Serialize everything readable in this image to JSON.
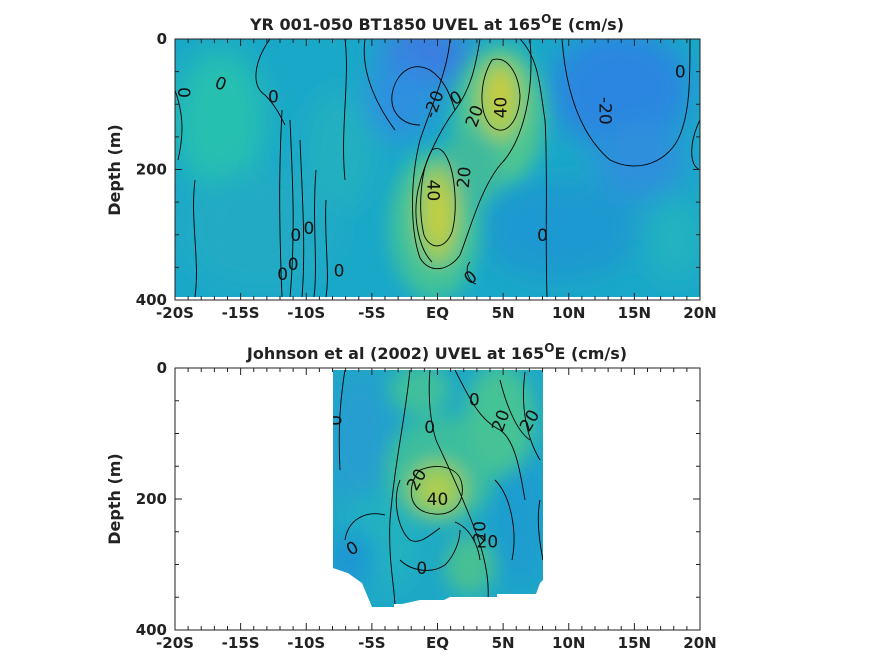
{
  "chart_data": [
    {
      "type": "heatmap",
      "title": "YR 001-050 BT1850 UVEL at 165",
      "title_superscript": "O",
      "title_suffix": "E (cm/s)",
      "ylabel": "Depth (m)",
      "xlim": [
        -20,
        20
      ],
      "ylim": [
        0,
        400
      ],
      "x_ticks": [
        -20,
        -15,
        -10,
        -5,
        0,
        5,
        10,
        15,
        20
      ],
      "x_tick_labels": [
        "-20S",
        "-15S",
        "-10S",
        "-5S",
        "EQ",
        "5N",
        "10N",
        "15N",
        "20N"
      ],
      "y_ticks": [
        0,
        200,
        400
      ],
      "y_tick_labels": [
        "0",
        "200",
        "400"
      ],
      "data_extent": {
        "x": [
          -20,
          20
        ],
        "y": [
          0,
          395
        ]
      },
      "features": [
        {
          "kind": "jet",
          "value": 45,
          "x": 0,
          "y": 220
        },
        {
          "kind": "jet",
          "value": 45,
          "x": 5.5,
          "y": 90
        },
        {
          "kind": "westward",
          "value": -25,
          "x": -1,
          "y": 40
        },
        {
          "kind": "westward",
          "value": -22,
          "x": 12,
          "y": 70
        }
      ],
      "contour_labels": [
        {
          "text": "0",
          "x": -16.5,
          "y": 68,
          "rotate": 20
        },
        {
          "text": "0",
          "x": -19.3,
          "y": 82,
          "rotate": 90
        },
        {
          "text": "0",
          "x": -12.5,
          "y": 88,
          "rotate": 0
        },
        {
          "text": "0",
          "x": 1.4,
          "y": 90,
          "rotate": -30
        },
        {
          "text": "-20",
          "x": -0.3,
          "y": 100,
          "rotate": -70
        },
        {
          "text": "20",
          "x": 2.8,
          "y": 118,
          "rotate": -70
        },
        {
          "text": "40",
          "x": 4.8,
          "y": 105,
          "rotate": -90
        },
        {
          "text": "-20",
          "x": 12.8,
          "y": 110,
          "rotate": 90
        },
        {
          "text": "0",
          "x": 18.5,
          "y": 50,
          "rotate": 0
        },
        {
          "text": "40",
          "x": -0.3,
          "y": 232,
          "rotate": 90
        },
        {
          "text": "20",
          "x": 2.0,
          "y": 212,
          "rotate": -85
        },
        {
          "text": "0",
          "x": 8.0,
          "y": 300,
          "rotate": 0
        },
        {
          "text": "0",
          "x": -9.8,
          "y": 290,
          "rotate": 0
        },
        {
          "text": "0",
          "x": -10.8,
          "y": 300,
          "rotate": 0
        },
        {
          "text": "0",
          "x": -11.0,
          "y": 345,
          "rotate": 0
        },
        {
          "text": "0",
          "x": -11.8,
          "y": 360,
          "rotate": 0
        },
        {
          "text": "0",
          "x": -7.5,
          "y": 355,
          "rotate": 0
        },
        {
          "text": "0",
          "x": 2.5,
          "y": 365,
          "rotate": -40
        }
      ]
    },
    {
      "type": "heatmap",
      "title": "Johnson et al (2002) UVEL at 165",
      "title_superscript": "O",
      "title_suffix": "E (cm/s)",
      "ylabel": "Depth (m)",
      "xlim": [
        -20,
        20
      ],
      "ylim": [
        0,
        400
      ],
      "x_ticks": [
        -20,
        -15,
        -10,
        -5,
        0,
        5,
        10,
        15,
        20
      ],
      "x_tick_labels": [
        "-20S",
        "-15S",
        "-10S",
        "-5S",
        "EQ",
        "5N",
        "10N",
        "15N",
        "20N"
      ],
      "y_ticks": [
        0,
        200,
        400
      ],
      "y_tick_labels": [
        "0",
        "200",
        "400"
      ],
      "data_extent": {
        "x": [
          -8,
          8
        ],
        "y": [
          0,
          360
        ]
      },
      "features": [
        {
          "kind": "jet",
          "value": 42,
          "x": 0,
          "y": 185
        },
        {
          "kind": "jet",
          "value": 25,
          "x": 3.5,
          "y": 70
        },
        {
          "kind": "jet",
          "value": 20,
          "x": 0.5,
          "y": 50
        }
      ],
      "contour_labels": [
        {
          "text": "0",
          "x": -7.8,
          "y": 80,
          "rotate": 90
        },
        {
          "text": "0",
          "x": -0.6,
          "y": 90,
          "rotate": 0
        },
        {
          "text": "0",
          "x": 2.8,
          "y": 48,
          "rotate": 0
        },
        {
          "text": "20",
          "x": 4.8,
          "y": 80,
          "rotate": -70
        },
        {
          "text": "20",
          "x": 7.0,
          "y": 80,
          "rotate": -60
        },
        {
          "text": "20",
          "x": -1.6,
          "y": 170,
          "rotate": -60
        },
        {
          "text": "40",
          "x": 0,
          "y": 200,
          "rotate": 0
        },
        {
          "text": "20",
          "x": 3.2,
          "y": 250,
          "rotate": -90
        },
        {
          "text": "20",
          "x": 3.8,
          "y": 265,
          "rotate": 0
        },
        {
          "text": "0",
          "x": -6.5,
          "y": 275,
          "rotate": -30
        },
        {
          "text": "0",
          "x": -1.2,
          "y": 305,
          "rotate": 0
        }
      ]
    }
  ]
}
